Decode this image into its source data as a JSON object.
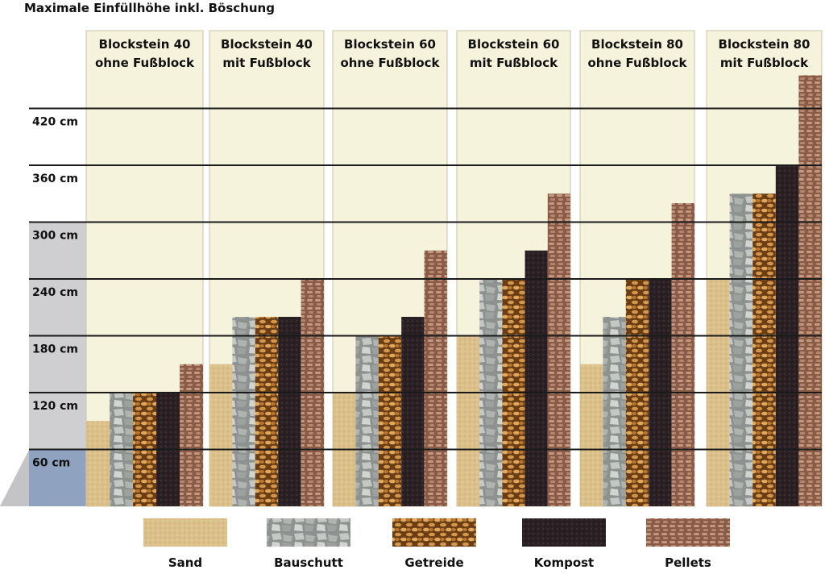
{
  "chart_data": {
    "type": "bar",
    "title": "Maximale Einfüllhöhe inkl. Böschung",
    "xlabel": "",
    "ylabel": "",
    "unit": "cm",
    "ylim": [
      0,
      460
    ],
    "yticks": [
      60,
      120,
      180,
      240,
      300,
      360,
      420
    ],
    "ytick_labels": [
      "60 cm",
      "120 cm",
      "180 cm",
      "240 cm",
      "300 cm",
      "360 cm",
      "420 cm"
    ],
    "grid": true,
    "legend_position": "bottom",
    "categories": [
      [
        "Blockstein 40",
        "ohne Fußblock"
      ],
      [
        "Blockstein 40",
        "mit Fußblock"
      ],
      [
        "Blockstein 60",
        "ohne Fußblock"
      ],
      [
        "Blockstein 60",
        "mit Fußblock"
      ],
      [
        "Blockstein 80",
        "ohne Fußblock"
      ],
      [
        "Blockstein 80",
        "mit Fußblock"
      ]
    ],
    "series": [
      {
        "name": "Sand",
        "color": "#dcc08a",
        "values": [
          90,
          150,
          120,
          180,
          150,
          240
        ]
      },
      {
        "name": "Bauschutt",
        "color": "#a8aca9",
        "values": [
          120,
          200,
          180,
          240,
          200,
          330
        ]
      },
      {
        "name": "Getreide",
        "color": "#c7863a",
        "values": [
          120,
          200,
          180,
          240,
          240,
          330
        ]
      },
      {
        "name": "Kompost",
        "color": "#2b2125",
        "values": [
          120,
          200,
          200,
          270,
          240,
          360
        ]
      },
      {
        "name": "Pellets",
        "color": "#ad7f66",
        "values": [
          150,
          240,
          270,
          330,
          320,
          455
        ]
      }
    ]
  }
}
